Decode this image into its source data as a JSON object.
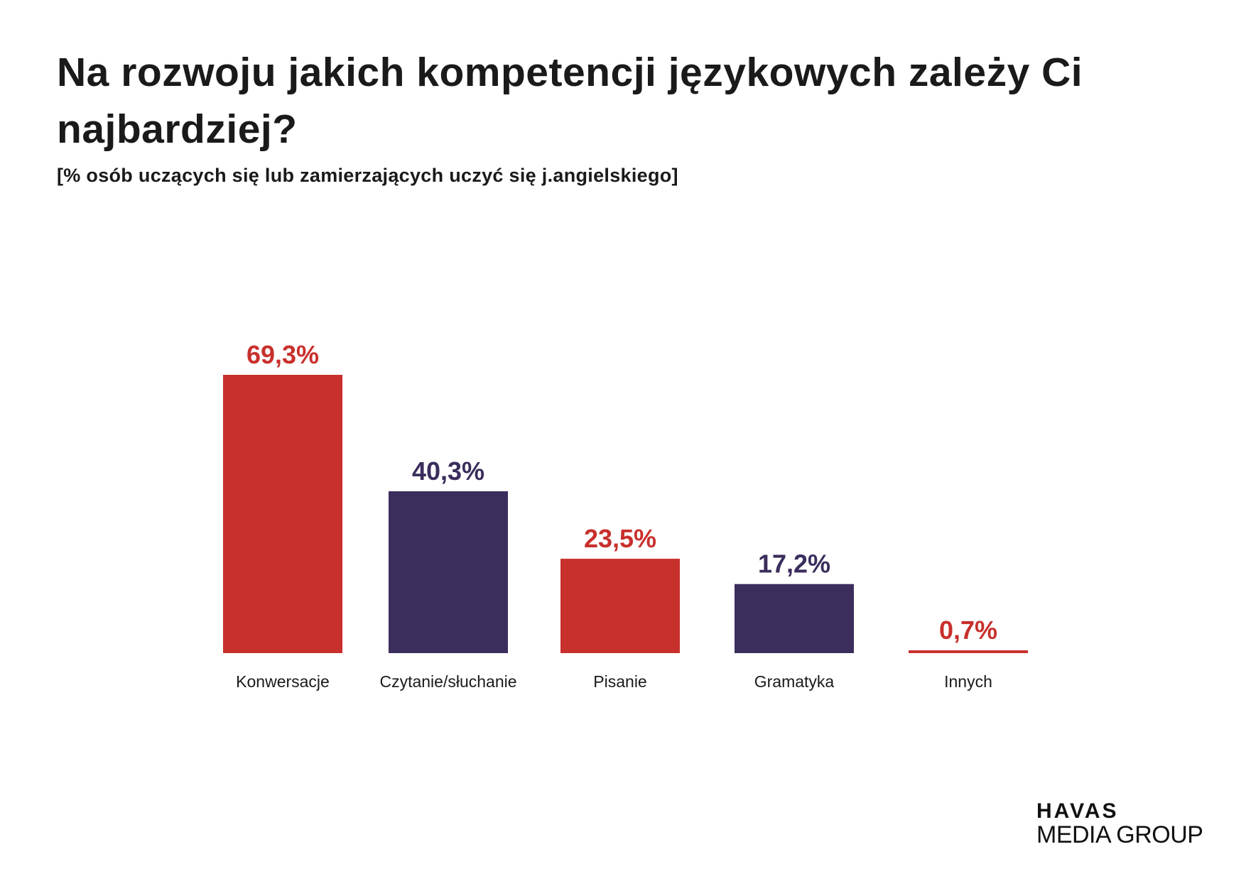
{
  "chart_data": {
    "type": "bar",
    "title": "Na rozwoju jakich kompetencji językowych zależy Ci najbardziej?",
    "subtitle": "[% osób uczących się lub zamierzających uczyć się j.angielskiego]",
    "categories": [
      "Konwersacje",
      "Czytanie/słuchanie",
      "Pisanie",
      "Gramatyka",
      "Innych"
    ],
    "values": [
      69.3,
      40.3,
      23.5,
      17.2,
      0.7
    ],
    "data_labels": [
      "69,3%",
      "40,3%",
      "23,5%",
      "17,2%",
      "0,7%"
    ],
    "colors": [
      "#c8302c",
      "#3b2d5c",
      "#c8302c",
      "#3b2d5c",
      "#c8302c"
    ],
    "xlabel": "",
    "ylabel": "",
    "ylim": [
      0,
      69.3
    ],
    "grid": false,
    "axes_visible": false
  },
  "logo": {
    "line1": "HAVAS",
    "line2": "MEDIA GROUP"
  }
}
